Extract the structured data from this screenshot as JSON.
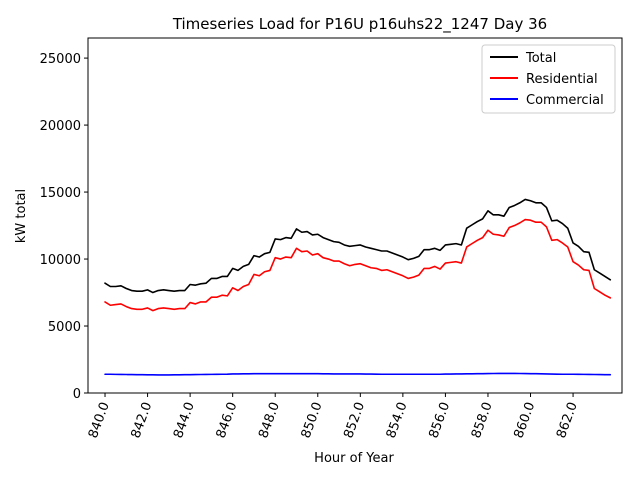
{
  "chart_data": {
    "type": "line",
    "title": "Timeseries Load for P16U p16uhs22_1247  Day 36",
    "xlabel": "Hour of Year",
    "ylabel": "kW total",
    "xlim": [
      839.2,
      864.3
    ],
    "ylim": [
      0,
      26500
    ],
    "x_ticks": [
      840,
      842,
      844,
      846,
      848,
      850,
      852,
      854,
      856,
      858,
      860,
      862
    ],
    "x_tick_labels": [
      "840.0",
      "842.0",
      "844.0",
      "846.0",
      "848.0",
      "850.0",
      "852.0",
      "854.0",
      "856.0",
      "858.0",
      "860.0",
      "862.0"
    ],
    "y_ticks": [
      0,
      5000,
      10000,
      15000,
      20000,
      25000
    ],
    "y_tick_labels": [
      "0",
      "5000",
      "10000",
      "15000",
      "20000",
      "25000"
    ],
    "legend_position": "top-right",
    "x": [
      840.0,
      840.25,
      840.5,
      840.75,
      841.0,
      841.25,
      841.5,
      841.75,
      842.0,
      842.25,
      842.5,
      842.75,
      843.0,
      843.25,
      843.5,
      843.75,
      844.0,
      844.25,
      844.5,
      844.75,
      845.0,
      845.25,
      845.5,
      845.75,
      846.0,
      846.25,
      846.5,
      846.75,
      847.0,
      847.25,
      847.5,
      847.75,
      848.0,
      848.25,
      848.5,
      848.75,
      849.0,
      849.25,
      849.5,
      849.75,
      850.0,
      850.25,
      850.5,
      850.75,
      851.0,
      851.25,
      851.5,
      851.75,
      852.0,
      852.25,
      852.5,
      852.75,
      853.0,
      853.25,
      853.5,
      853.75,
      854.0,
      854.25,
      854.5,
      854.75,
      855.0,
      855.25,
      855.5,
      855.75,
      856.0,
      856.25,
      856.5,
      856.75,
      857.0,
      857.25,
      857.5,
      857.75,
      858.0,
      858.25,
      858.5,
      858.75,
      859.0,
      859.25,
      859.5,
      859.75,
      860.0,
      860.25,
      860.5,
      860.75,
      861.0,
      861.25,
      861.5,
      861.75,
      862.0,
      862.25,
      862.5,
      862.75,
      863.0,
      863.25,
      863.5,
      863.75
    ],
    "series": [
      {
        "name": "Total",
        "color": "#000000",
        "values": [
          8200,
          7950,
          7950,
          8000,
          7800,
          7650,
          7600,
          7600,
          7700,
          7500,
          7650,
          7700,
          7650,
          7600,
          7650,
          7650,
          8100,
          8050,
          8150,
          8200,
          8550,
          8550,
          8700,
          8700,
          9300,
          9150,
          9450,
          9600,
          10250,
          10150,
          10400,
          10500,
          11500,
          11450,
          11600,
          11550,
          12250,
          12000,
          12050,
          11800,
          11850,
          11600,
          11450,
          11300,
          11250,
          11050,
          10950,
          11000,
          11050,
          10900,
          10800,
          10700,
          10600,
          10600,
          10450,
          10300,
          10150,
          9950,
          10050,
          10200,
          10700,
          10700,
          10800,
          10650,
          11050,
          11100,
          11150,
          11050,
          12300,
          12550,
          12800,
          13000,
          13600,
          13300,
          13300,
          13200,
          13850,
          14000,
          14200,
          14450,
          14350,
          14200,
          14200,
          13850,
          12850,
          12900,
          12650,
          12300,
          11200,
          10950,
          10550,
          10500,
          9200,
          8950,
          8700,
          8450
        ]
      },
      {
        "name": "Residential",
        "color": "#ff0000",
        "values": [
          6800,
          6550,
          6600,
          6650,
          6450,
          6300,
          6250,
          6250,
          6350,
          6150,
          6300,
          6350,
          6300,
          6250,
          6300,
          6300,
          6750,
          6650,
          6800,
          6800,
          7150,
          7150,
          7300,
          7250,
          7850,
          7650,
          7950,
          8100,
          8850,
          8750,
          9050,
          9150,
          10100,
          10000,
          10150,
          10100,
          10800,
          10550,
          10600,
          10300,
          10400,
          10100,
          10000,
          9850,
          9850,
          9650,
          9500,
          9600,
          9650,
          9500,
          9350,
          9300,
          9150,
          9200,
          9050,
          8900,
          8750,
          8550,
          8650,
          8800,
          9300,
          9300,
          9450,
          9250,
          9700,
          9750,
          9800,
          9700,
          10900,
          11150,
          11400,
          11600,
          12150,
          11850,
          11800,
          11700,
          12350,
          12500,
          12700,
          12950,
          12900,
          12750,
          12750,
          12400,
          11400,
          11450,
          11200,
          10900,
          9800,
          9550,
          9200,
          9150,
          7800,
          7550,
          7300,
          7100
        ]
      },
      {
        "name": "Commercial",
        "color": "#0000ff",
        "values": [
          1400,
          1400,
          1390,
          1385,
          1380,
          1375,
          1370,
          1365,
          1360,
          1355,
          1350,
          1350,
          1350,
          1355,
          1360,
          1365,
          1370,
          1375,
          1380,
          1385,
          1390,
          1395,
          1400,
          1405,
          1420,
          1425,
          1430,
          1435,
          1440,
          1440,
          1440,
          1440,
          1440,
          1440,
          1440,
          1440,
          1440,
          1440,
          1440,
          1440,
          1440,
          1435,
          1430,
          1425,
          1420,
          1420,
          1420,
          1420,
          1420,
          1415,
          1410,
          1405,
          1400,
          1400,
          1400,
          1400,
          1400,
          1400,
          1400,
          1400,
          1400,
          1400,
          1400,
          1400,
          1410,
          1415,
          1420,
          1425,
          1430,
          1435,
          1440,
          1445,
          1450,
          1455,
          1460,
          1460,
          1460,
          1460,
          1455,
          1450,
          1445,
          1440,
          1430,
          1420,
          1410,
          1405,
          1400,
          1400,
          1400,
          1395,
          1390,
          1385,
          1380,
          1375,
          1370,
          1365
        ]
      }
    ]
  }
}
